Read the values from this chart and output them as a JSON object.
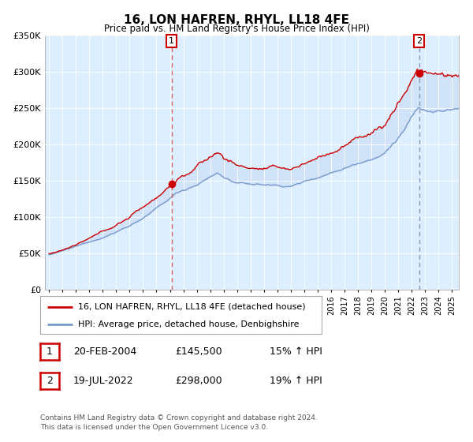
{
  "title": "16, LON HAFREN, RHYL, LL18 4FE",
  "subtitle": "Price paid vs. HM Land Registry's House Price Index (HPI)",
  "legend_line1": "16, LON HAFREN, RHYL, LL18 4FE (detached house)",
  "legend_line2": "HPI: Average price, detached house, Denbighshire",
  "sale1_date": "20-FEB-2004",
  "sale1_price": "£145,500",
  "sale1_hpi": "15% ↑ HPI",
  "sale2_date": "19-JUL-2022",
  "sale2_price": "£298,000",
  "sale2_hpi": "19% ↑ HPI",
  "footnote": "Contains HM Land Registry data © Crown copyright and database right 2024.\nThis data is licensed under the Open Government Licence v3.0.",
  "sale1_date_num": 2004.13,
  "sale1_value": 145500,
  "sale2_date_num": 2022.54,
  "sale2_value": 298000,
  "hpi_line_color": "#7799cc",
  "hpi_fill_color": "#ccdff7",
  "price_color": "#cc0000",
  "dashed_color1": "#dd8888",
  "dashed_color2": "#8899cc",
  "plot_bg_color": "#ddeeff",
  "fig_bg_color": "#ffffff",
  "ylim": [
    0,
    350000
  ],
  "yticks": [
    0,
    50000,
    100000,
    150000,
    200000,
    250000,
    300000,
    350000
  ],
  "ytick_labels": [
    "£0",
    "£50K",
    "£100K",
    "£150K",
    "£200K",
    "£250K",
    "£300K",
    "£350K"
  ],
  "xlim_start": 1994.7,
  "xlim_end": 2025.5
}
